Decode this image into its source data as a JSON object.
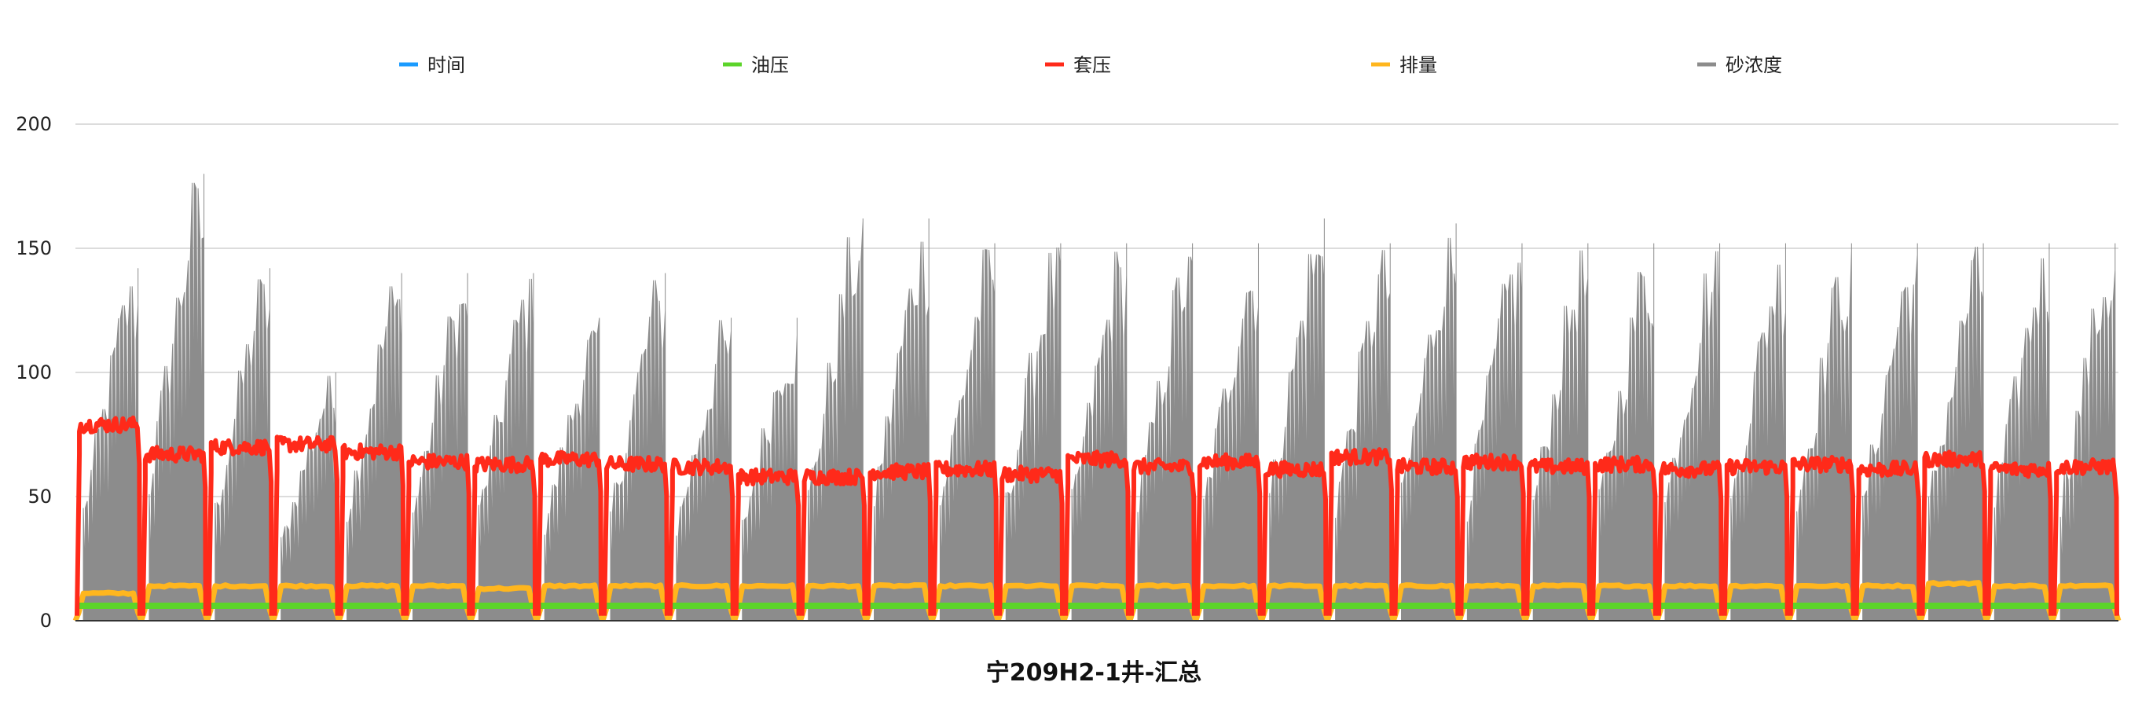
{
  "chart_data": {
    "type": "line",
    "title": "宁209H2-1井-汇总",
    "xlabel": "",
    "ylabel": "",
    "ylim": [
      0,
      200
    ],
    "yticks": [
      0,
      50,
      100,
      150,
      200
    ],
    "grid": true,
    "legend_position": "top",
    "stage_count": 31,
    "series": [
      {
        "name": "时间",
        "color": "#1a9bff",
        "values": []
      },
      {
        "name": "油压",
        "color": "#5cd42a",
        "typical_value": 6,
        "values": [
          6,
          6,
          6,
          6,
          6,
          6,
          6,
          6,
          6,
          6,
          6,
          6,
          6,
          6,
          6,
          6,
          6,
          6,
          6,
          6,
          6,
          6,
          6,
          6,
          6,
          6,
          6,
          6,
          6,
          6,
          6
        ]
      },
      {
        "name": "套压",
        "color": "#ff2a1a",
        "values": [
          79,
          67,
          70,
          71,
          68,
          64,
          63,
          65,
          63,
          62,
          58,
          58,
          60,
          61,
          59,
          65,
          62,
          64,
          61,
          66,
          62,
          64,
          62,
          63,
          61,
          62,
          63,
          61,
          65,
          61,
          62
        ]
      },
      {
        "name": "排量",
        "color": "#ffb61e",
        "values": [
          11,
          14,
          14,
          14,
          14,
          14,
          13,
          14,
          14,
          14,
          14,
          14,
          14,
          14,
          14,
          14,
          14,
          14,
          14,
          14,
          14,
          14,
          14,
          14,
          14,
          14,
          14,
          14,
          15,
          14,
          14
        ]
      },
      {
        "name": "砂浓度",
        "color": "#8c8c8c",
        "values": [
          142,
          180,
          142,
          100,
          140,
          140,
          140,
          122,
          140,
          122,
          122,
          162,
          162,
          152,
          152,
          152,
          152,
          152,
          162,
          152,
          160,
          152,
          152,
          152,
          152,
          152,
          152,
          152,
          152,
          152,
          152
        ]
      }
    ]
  },
  "yaxis_labels": [
    "0",
    "50",
    "100",
    "150",
    "200"
  ]
}
